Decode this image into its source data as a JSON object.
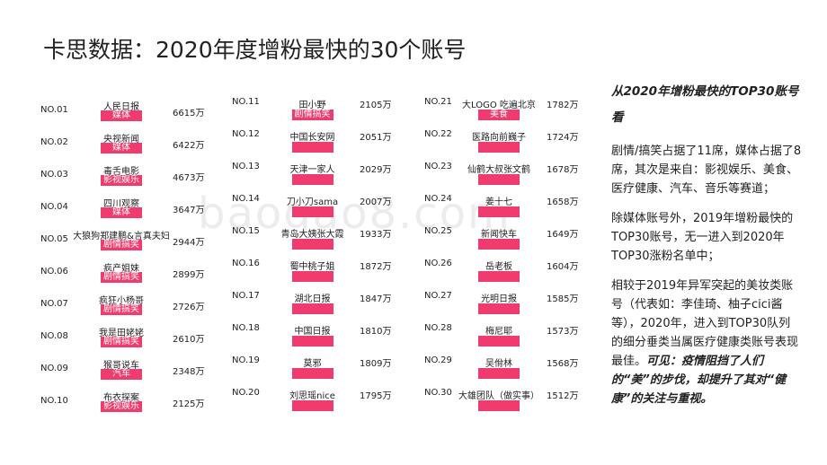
{
  "title": "卡思数据：2020年度增粉最快的30个账号",
  "watermark": "baogao8.com",
  "columns": [
    [
      {
        "rank": "NO.01",
        "name": "人民日报",
        "tag": "媒体",
        "count": "6615万"
      },
      {
        "rank": "NO.02",
        "name": "央视新闻",
        "tag": "媒体",
        "count": "6422万"
      },
      {
        "rank": "NO.03",
        "name": "毒舌电影",
        "tag": "影视娱乐",
        "count": "4673万"
      },
      {
        "rank": "NO.04",
        "name": "四川观察",
        "tag": "媒体",
        "count": "3647万"
      },
      {
        "rank": "NO.05",
        "name": "大狼狗郑建鹏&言真夫妇",
        "tag": "剧情搞笑",
        "count": "2944万"
      },
      {
        "rank": "NO.06",
        "name": "疯产姐妹",
        "tag": "剧情搞笑",
        "count": "2899万"
      },
      {
        "rank": "NO.07",
        "name": "疯狂小杨哥",
        "tag": "剧情搞笑",
        "count": "2726万"
      },
      {
        "rank": "NO.08",
        "name": "我是田姥姥",
        "tag": "剧情搞笑",
        "count": "2610万"
      },
      {
        "rank": "NO.09",
        "name": "猴哥说车",
        "tag": "汽车",
        "count": "2348万"
      },
      {
        "rank": "NO.10",
        "name": "布衣探案",
        "tag": "影视娱乐",
        "count": "2125万"
      }
    ],
    [
      {
        "rank": "NO.11",
        "name": "田小野",
        "tag": "剧情搞笑",
        "count": "2105万"
      },
      {
        "rank": "NO.12",
        "name": "中国长安网",
        "count": "2051万"
      },
      {
        "rank": "NO.13",
        "name": "天津一家人",
        "count": "2029万"
      },
      {
        "rank": "NO.14",
        "name": "刀小刀sama",
        "count": "2007万"
      },
      {
        "rank": "NO.15",
        "name": "青岛大姨张大霞",
        "count": "1933万"
      },
      {
        "rank": "NO.16",
        "name": "蜀中桃子姐",
        "count": "1872万"
      },
      {
        "rank": "NO.17",
        "name": "湖北日报",
        "count": "1847万"
      },
      {
        "rank": "NO.18",
        "name": "中国日报",
        "count": "1810万"
      },
      {
        "rank": "NO.19",
        "name": "莫邪",
        "count": "1809万"
      },
      {
        "rank": "NO.20",
        "name": "刘思瑶nice",
        "count": "1795万"
      }
    ],
    [
      {
        "rank": "NO.21",
        "name": "大LOGO 吃遍北京",
        "tag": "美食",
        "count": "1782万"
      },
      {
        "rank": "NO.22",
        "name": "医路向前巍子",
        "count": "1724万"
      },
      {
        "rank": "NO.23",
        "name": "仙鹤大叔张文鹤",
        "count": "1678万"
      },
      {
        "rank": "NO.24",
        "name": "姜十七",
        "count": "1658万"
      },
      {
        "rank": "NO.25",
        "name": "新闻快车",
        "count": "1649万"
      },
      {
        "rank": "NO.26",
        "name": "岳老板",
        "count": "1604万"
      },
      {
        "rank": "NO.27",
        "name": "光明日报",
        "count": "1585万"
      },
      {
        "rank": "NO.28",
        "name": "梅尼耶",
        "count": "1573万"
      },
      {
        "rank": "NO.29",
        "name": "吴佾林",
        "count": "1568万"
      },
      {
        "rank": "NO.30",
        "name": "大雄团队（做实事）",
        "count": "1512万"
      }
    ]
  ],
  "side": {
    "heading": "从2020年增粉最快的TOP30账号看",
    "paragraphs": [
      [
        "剧情/搞笑占据了11席，媒体占据了8席，其次是来自：影视娱乐、美食、医疗健康、汽车、音乐等赛道；"
      ],
      [
        "除媒体账号外，2019年增粉最快的TOP30账号，无一进入到2020年TOP30涨粉名单中；"
      ],
      [
        "相较于2019年异军突起的美妆类账号（代表如：李佳琦、柚子cici酱等），2020年，进入到TOP30队列的细分垂类当属医疗健康类账号表现最佳。",
        "可见：疫情阻挡了人们的“美”的步伐，却提升了其对“健康”的关注与重视。"
      ]
    ]
  }
}
